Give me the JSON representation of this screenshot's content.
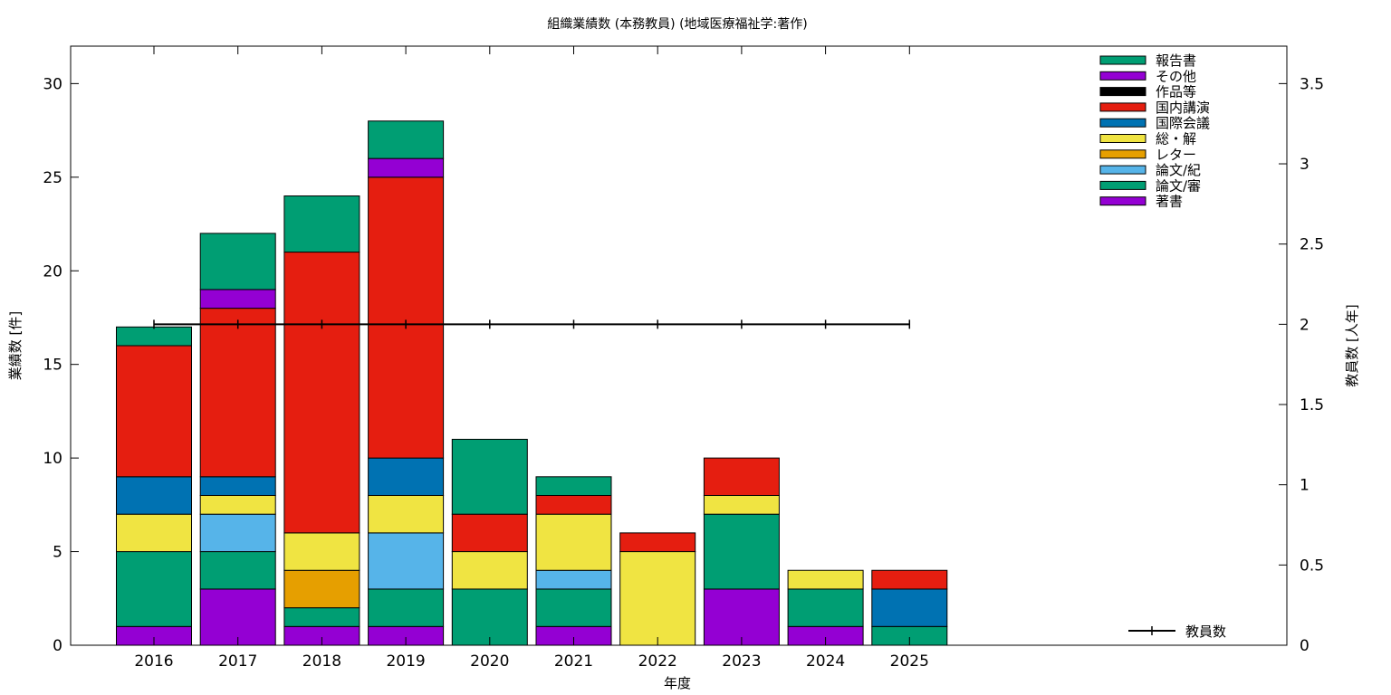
{
  "chart_data": {
    "type": "bar",
    "stacked": true,
    "title": "組織業績数 (本務教員) (地域医療福祉学:著作)",
    "xlabel": "年度",
    "ylabel": "業績数 [件]",
    "y2label": "教員数 [人年]",
    "ylim": [
      0,
      32
    ],
    "yticks": [
      0,
      5,
      10,
      15,
      20,
      25,
      30
    ],
    "y2lim": [
      0,
      3.7333
    ],
    "y2ticks": [
      "0",
      "0.5",
      "1",
      "1.5",
      "2",
      "2.5",
      "3",
      "3.5"
    ],
    "y2tick_values": [
      0,
      0.5,
      1,
      1.5,
      2,
      2.5,
      3,
      3.5
    ],
    "categories": [
      "2016",
      "2017",
      "2018",
      "2019",
      "2020",
      "2021",
      "2022",
      "2023",
      "2024",
      "2025"
    ],
    "series": [
      {
        "name": "著書",
        "color": "#9400d3",
        "values": [
          1,
          3,
          1,
          1,
          0,
          1,
          0,
          3,
          1,
          0
        ]
      },
      {
        "name": "論文/審",
        "color": "#009e73",
        "values": [
          4,
          2,
          1,
          2,
          3,
          2,
          0,
          4,
          2,
          1
        ]
      },
      {
        "name": "論文/紀",
        "color": "#56b4e9",
        "values": [
          0,
          2,
          0,
          3,
          0,
          1,
          0,
          0,
          0,
          0
        ]
      },
      {
        "name": "レター",
        "color": "#e69f00",
        "values": [
          0,
          0,
          2,
          0,
          0,
          0,
          0,
          0,
          0,
          0
        ]
      },
      {
        "name": "総・解",
        "color": "#f0e442",
        "values": [
          2,
          1,
          2,
          2,
          2,
          3,
          5,
          1,
          1,
          0
        ]
      },
      {
        "name": "国際会議",
        "color": "#0072b2",
        "values": [
          2,
          1,
          0,
          2,
          0,
          0,
          0,
          0,
          0,
          2
        ]
      },
      {
        "name": "国内講演",
        "color": "#e51e10",
        "values": [
          7,
          9,
          15,
          15,
          2,
          1,
          1,
          2,
          0,
          1
        ]
      },
      {
        "name": "作品等",
        "color": "#000000",
        "values": [
          0,
          0,
          0,
          0,
          0,
          0,
          0,
          0,
          0,
          0
        ]
      },
      {
        "name": "その他",
        "color": "#9400d3",
        "values": [
          0,
          1,
          0,
          1,
          0,
          0,
          0,
          0,
          0,
          0
        ]
      },
      {
        "name": "報告書",
        "color": "#009e73",
        "values": [
          1,
          3,
          3,
          2,
          4,
          1,
          0,
          0,
          0,
          0
        ]
      }
    ],
    "line_series": {
      "name": "教員数",
      "axis": "y2",
      "color": "#000000",
      "values": [
        2,
        2,
        2,
        2,
        2,
        2,
        2,
        2,
        2,
        2
      ]
    },
    "legend_position": "top-right",
    "grid": false
  }
}
